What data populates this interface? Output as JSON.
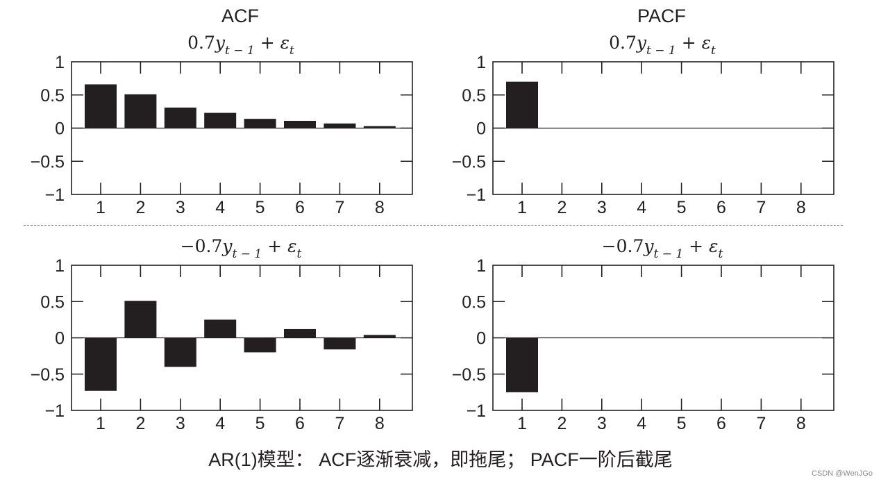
{
  "titles": {
    "acf": "ACF",
    "pacf": "PACF"
  },
  "caption": "AR(1)模型： ACF逐渐衰减，即拖尾； PACF一阶后截尾",
  "watermark": "CSDN @WenJGo",
  "colors": {
    "bar": "#231f20",
    "axis": "#231f20",
    "divider": "#8a8a8a"
  },
  "chart_data": [
    {
      "type": "bar",
      "title": "0.7y_{t-1} + ε_t",
      "title_parts": {
        "coef": "0.7",
        "y": "y",
        "sub": "t − 1",
        "plus": "+",
        "eps": "ε",
        "eps_sub": "t"
      },
      "categories": [
        "1",
        "2",
        "3",
        "4",
        "5",
        "6",
        "7",
        "8"
      ],
      "values": [
        0.66,
        0.51,
        0.31,
        0.23,
        0.14,
        0.11,
        0.07,
        0.03
      ],
      "ylim": [
        -1,
        1
      ],
      "yticks": [
        "1",
        "0.5",
        "0",
        "−0.5",
        "−1"
      ],
      "ytick_values": [
        1,
        0.5,
        0,
        -0.5,
        -1
      ]
    },
    {
      "type": "bar",
      "title": "0.7y_{t-1} + ε_t",
      "title_parts": {
        "coef": "0.7",
        "y": "y",
        "sub": "t − 1",
        "plus": "+",
        "eps": "ε",
        "eps_sub": "t"
      },
      "categories": [
        "1",
        "2",
        "3",
        "4",
        "5",
        "6",
        "7",
        "8"
      ],
      "values": [
        0.7,
        0,
        0,
        0,
        0,
        0,
        0,
        0
      ],
      "ylim": [
        -1,
        1
      ],
      "yticks": [
        "1",
        "0.5",
        "0",
        "−0.5",
        "−1"
      ],
      "ytick_values": [
        1,
        0.5,
        0,
        -0.5,
        -1
      ]
    },
    {
      "type": "bar",
      "title": "−0.7y_{t-1} + ε_t",
      "title_parts": {
        "coef": "−0.7",
        "y": "y",
        "sub": "t − 1",
        "plus": "+",
        "eps": "ε",
        "eps_sub": "t"
      },
      "categories": [
        "1",
        "2",
        "3",
        "4",
        "5",
        "6",
        "7",
        "8"
      ],
      "values": [
        -0.73,
        0.51,
        -0.4,
        0.25,
        -0.2,
        0.12,
        -0.16,
        0.04
      ],
      "ylim": [
        -1,
        1
      ],
      "yticks": [
        "1",
        "0.5",
        "0",
        "−0.5",
        "−1"
      ],
      "ytick_values": [
        1,
        0.5,
        0,
        -0.5,
        -1
      ]
    },
    {
      "type": "bar",
      "title": "−0.7y_{t-1} + ε_t",
      "title_parts": {
        "coef": "−0.7",
        "y": "y",
        "sub": "t − 1",
        "plus": "+",
        "eps": "ε",
        "eps_sub": "t"
      },
      "categories": [
        "1",
        "2",
        "3",
        "4",
        "5",
        "6",
        "7",
        "8"
      ],
      "values": [
        -0.75,
        0,
        0,
        0,
        0,
        0,
        0,
        0
      ],
      "ylim": [
        -1,
        1
      ],
      "yticks": [
        "1",
        "0.5",
        "0",
        "−0.5",
        "−1"
      ],
      "ytick_values": [
        1,
        0.5,
        0,
        -0.5,
        -1
      ]
    }
  ]
}
